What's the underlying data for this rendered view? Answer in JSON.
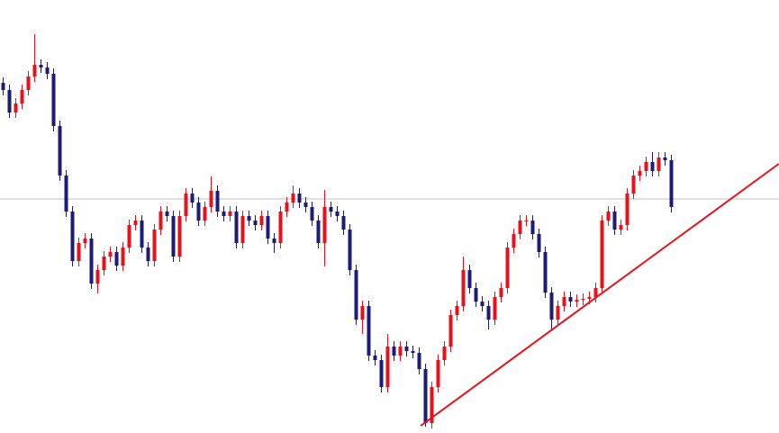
{
  "chart_data": {
    "type": "candlestick",
    "xlim": [
      -0.43,
      123.14
    ],
    "ylim": [
      0,
      481
    ],
    "up_color": "#e8101a",
    "down_color": "#1c1c78",
    "open": [
      389,
      381,
      356,
      366,
      381,
      396,
      409,
      406,
      399,
      341,
      286,
      246,
      191,
      211,
      216,
      166,
      181,
      196,
      201,
      186,
      206,
      231,
      236,
      206,
      191,
      226,
      246,
      241,
      196,
      241,
      266,
      256,
      236,
      251,
      269,
      246,
      241,
      246,
      211,
      241,
      236,
      231,
      241,
      216,
      211,
      246,
      256,
      266,
      256,
      251,
      236,
      211,
      251,
      246,
      241,
      226,
      181,
      126,
      141,
      86,
      81,
      51,
      96,
      86,
      96,
      91,
      89,
      71,
      11,
      51,
      81,
      96,
      131,
      141,
      181,
      161,
      146,
      141,
      126,
      151,
      161,
      206,
      221,
      236,
      236,
      221,
      201,
      156,
      126,
      141,
      151,
      146,
      148,
      149,
      151,
      161,
      236,
      246,
      226,
      231,
      266,
      286,
      291,
      301,
      291,
      306,
      303
    ],
    "high": [
      395,
      387,
      372,
      387,
      402,
      443,
      415,
      412,
      405,
      347,
      292,
      252,
      217,
      222,
      222,
      187,
      202,
      207,
      207,
      212,
      237,
      242,
      242,
      212,
      232,
      252,
      252,
      247,
      247,
      272,
      272,
      262,
      257,
      285,
      275,
      252,
      252,
      252,
      247,
      247,
      242,
      247,
      247,
      222,
      252,
      262,
      275,
      272,
      262,
      257,
      242,
      270,
      257,
      252,
      247,
      232,
      187,
      147,
      147,
      92,
      87,
      110,
      102,
      102,
      102,
      97,
      95,
      77,
      57,
      87,
      102,
      137,
      147,
      196,
      187,
      167,
      152,
      147,
      157,
      167,
      212,
      227,
      242,
      242,
      242,
      227,
      207,
      162,
      147,
      157,
      157,
      154,
      155,
      157,
      167,
      242,
      252,
      252,
      237,
      272,
      292,
      297,
      307,
      312,
      312,
      312,
      309
    ],
    "low": [
      375,
      350,
      350,
      360,
      375,
      390,
      400,
      393,
      335,
      280,
      240,
      185,
      185,
      205,
      160,
      155,
      175,
      190,
      180,
      180,
      200,
      225,
      200,
      185,
      185,
      220,
      235,
      190,
      190,
      235,
      250,
      230,
      230,
      245,
      240,
      235,
      235,
      205,
      205,
      230,
      225,
      225,
      210,
      200,
      205,
      240,
      250,
      250,
      245,
      230,
      205,
      185,
      240,
      235,
      220,
      175,
      120,
      110,
      80,
      75,
      45,
      45,
      80,
      80,
      85,
      83,
      65,
      7,
      5,
      45,
      75,
      90,
      125,
      135,
      155,
      140,
      135,
      115,
      120,
      145,
      155,
      200,
      215,
      230,
      215,
      195,
      150,
      115,
      120,
      135,
      140,
      140,
      142,
      143,
      145,
      155,
      230,
      220,
      220,
      225,
      260,
      280,
      285,
      285,
      285,
      297,
      245
    ],
    "close": [
      381,
      356,
      366,
      381,
      396,
      409,
      406,
      399,
      341,
      286,
      246,
      191,
      211,
      216,
      166,
      181,
      196,
      201,
      186,
      206,
      231,
      236,
      206,
      191,
      226,
      246,
      241,
      196,
      241,
      266,
      256,
      236,
      251,
      269,
      246,
      241,
      246,
      211,
      241,
      236,
      231,
      241,
      216,
      211,
      246,
      256,
      266,
      256,
      251,
      236,
      211,
      251,
      246,
      241,
      226,
      181,
      126,
      141,
      86,
      81,
      51,
      96,
      86,
      96,
      91,
      89,
      71,
      11,
      51,
      81,
      96,
      131,
      141,
      181,
      161,
      146,
      141,
      126,
      151,
      161,
      206,
      221,
      236,
      236,
      221,
      201,
      156,
      126,
      141,
      151,
      146,
      148,
      149,
      151,
      161,
      236,
      246,
      226,
      231,
      266,
      286,
      291,
      301,
      291,
      306,
      303,
      251
    ],
    "hline": {
      "value": 260,
      "color": "#c0c0c0"
    },
    "trendline": {
      "x": [
        66.3,
        123.1
      ],
      "values": [
        8,
        299
      ],
      "color": "#e8101a"
    }
  }
}
